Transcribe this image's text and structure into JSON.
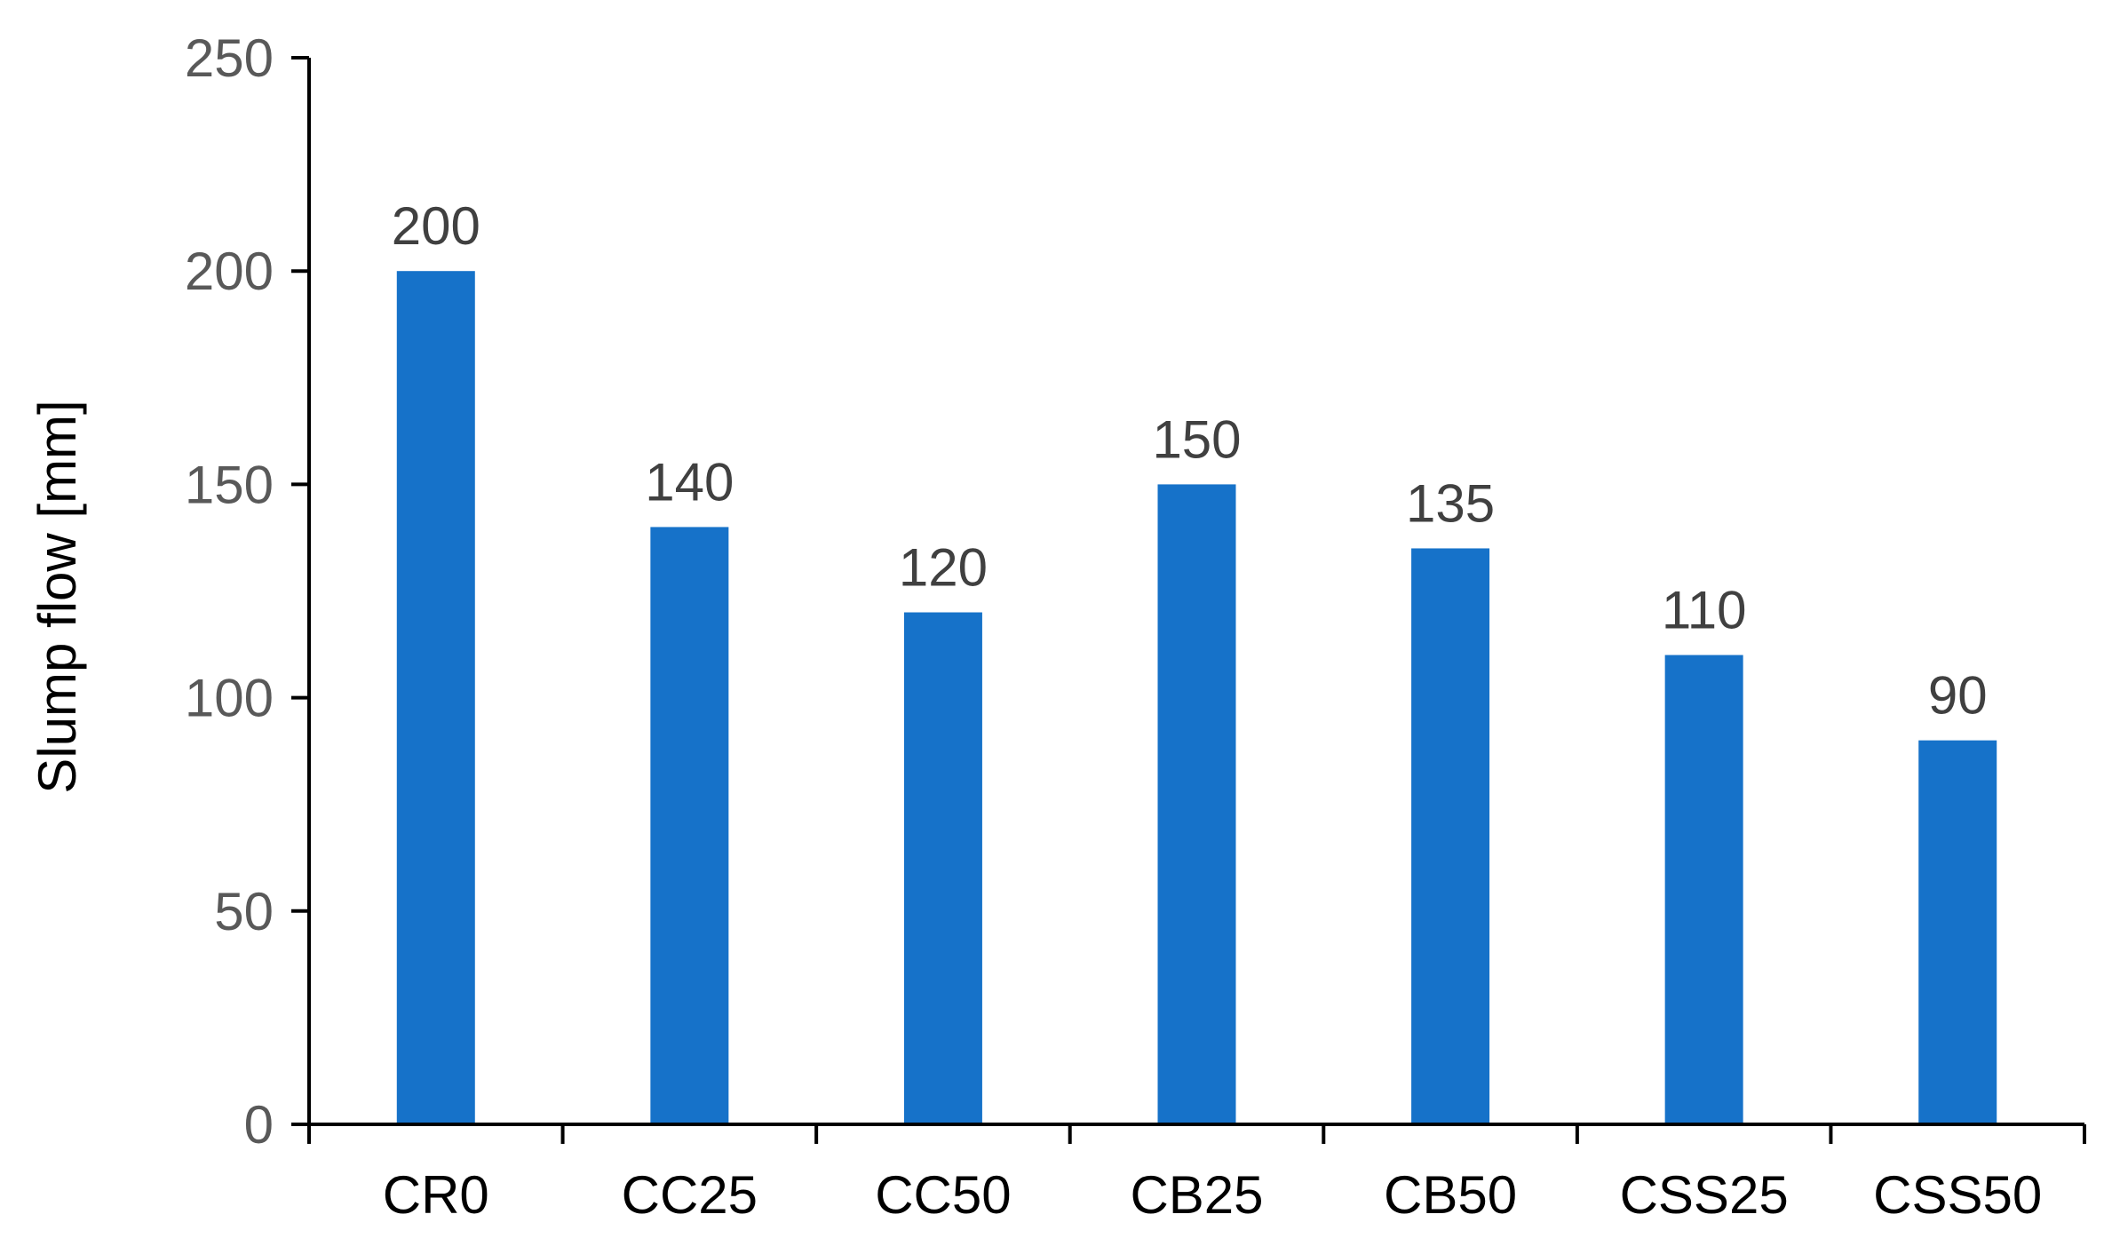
{
  "chart_data": {
    "type": "bar",
    "title": "",
    "xlabel": "",
    "ylabel": "Slump flow [mm]",
    "categories": [
      "CR0",
      "CC25",
      "CC50",
      "CB25",
      "CB50",
      "CSS25",
      "CSS50"
    ],
    "values": [
      200,
      140,
      120,
      150,
      135,
      110,
      90
    ],
    "data_labels": [
      "200",
      "140",
      "120",
      "150",
      "135",
      "110",
      "90"
    ],
    "ylim": [
      0,
      250
    ],
    "yticks": [
      0,
      50,
      100,
      150,
      200,
      250
    ],
    "grid": false,
    "legend": "none",
    "colors": {
      "bar": "#1672C9",
      "axis": "#000000",
      "tick_label": "#595959",
      "category_label": "#000000",
      "data_label": "#404040"
    }
  }
}
